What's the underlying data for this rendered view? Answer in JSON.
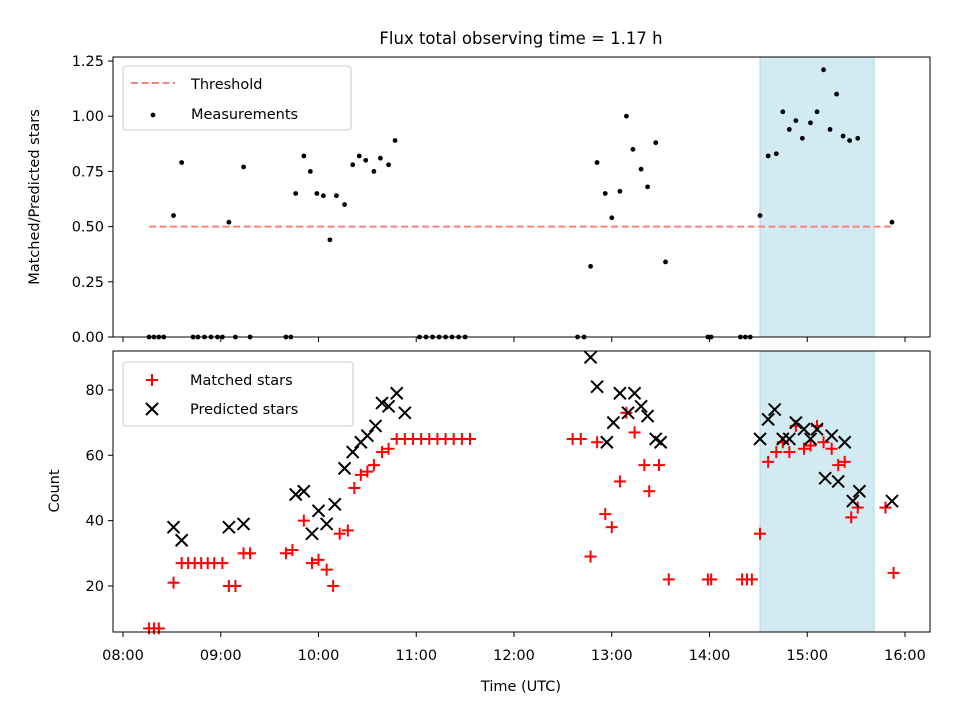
{
  "figure": {
    "title": "Flux total observing time = 1.17 h"
  },
  "chart_data": [
    {
      "type": "scatter",
      "ylabel": "Matched/Predicted stars",
      "xlabel": "",
      "xlim": [
        "08:00",
        "16:00"
      ],
      "ylim": [
        0,
        1.25
      ],
      "y_ticks": [
        0.0,
        0.25,
        0.5,
        0.75,
        1.0,
        1.25
      ],
      "y_tick_labels": [
        "0.00",
        "0.25",
        "0.50",
        "0.75",
        "1.00",
        "1.25"
      ],
      "legend": {
        "placement": "upper-left",
        "entries": [
          "Threshold",
          "Measurements"
        ]
      },
      "threshold": {
        "name": "Threshold",
        "y": 0.5,
        "x_range": [
          "08:16",
          "15:53"
        ],
        "color": "#ff7f7f"
      },
      "shaded_region": {
        "x_range": [
          "14:31",
          "15:41"
        ],
        "color": "#add8e6"
      },
      "series": [
        {
          "name": "Measurements",
          "marker": "dot",
          "color": "#000000",
          "points": [
            [
              "08:16",
              0
            ],
            [
              "08:19",
              0
            ],
            [
              "08:22",
              0
            ],
            [
              "08:25",
              0
            ],
            [
              "08:31",
              0.55
            ],
            [
              "08:36",
              0.79
            ],
            [
              "08:43",
              0
            ],
            [
              "08:46",
              0
            ],
            [
              "08:50",
              0
            ],
            [
              "08:54",
              0
            ],
            [
              "08:58",
              0
            ],
            [
              "09:01",
              0
            ],
            [
              "09:05",
              0.52
            ],
            [
              "09:09",
              0
            ],
            [
              "09:14",
              0.77
            ],
            [
              "09:18",
              0
            ],
            [
              "09:40",
              0
            ],
            [
              "09:43",
              0
            ],
            [
              "09:46",
              0.65
            ],
            [
              "09:51",
              0.82
            ],
            [
              "09:55",
              0.75
            ],
            [
              "09:59",
              0.65
            ],
            [
              "10:03",
              0.64
            ],
            [
              "10:07",
              0.44
            ],
            [
              "10:11",
              0.64
            ],
            [
              "10:16",
              0.6
            ],
            [
              "10:21",
              0.78
            ],
            [
              "10:25",
              0.82
            ],
            [
              "10:29",
              0.8
            ],
            [
              "10:34",
              0.75
            ],
            [
              "10:38",
              0.81
            ],
            [
              "10:43",
              0.78
            ],
            [
              "10:47",
              0.89
            ],
            [
              "11:02",
              0
            ],
            [
              "11:06",
              0
            ],
            [
              "11:10",
              0
            ],
            [
              "11:14",
              0
            ],
            [
              "11:18",
              0
            ],
            [
              "11:22",
              0
            ],
            [
              "11:26",
              0
            ],
            [
              "11:30",
              0
            ],
            [
              "12:39",
              0
            ],
            [
              "12:43",
              0
            ],
            [
              "12:47",
              0.32
            ],
            [
              "12:51",
              0.79
            ],
            [
              "12:56",
              0.65
            ],
            [
              "13:00",
              0.54
            ],
            [
              "13:05",
              0.66
            ],
            [
              "13:09",
              1.0
            ],
            [
              "13:13",
              0.85
            ],
            [
              "13:18",
              0.76
            ],
            [
              "13:22",
              0.68
            ],
            [
              "13:27",
              0.88
            ],
            [
              "13:33",
              0.34
            ],
            [
              "13:59",
              0
            ],
            [
              "14:01",
              0
            ],
            [
              "14:19",
              0
            ],
            [
              "14:22",
              0
            ],
            [
              "14:25",
              0
            ],
            [
              "14:31",
              0.55
            ],
            [
              "14:36",
              0.82
            ],
            [
              "14:41",
              0.83
            ],
            [
              "14:45",
              1.02
            ],
            [
              "14:49",
              0.94
            ],
            [
              "14:53",
              0.98
            ],
            [
              "14:57",
              0.9
            ],
            [
              "15:02",
              0.97
            ],
            [
              "15:06",
              1.02
            ],
            [
              "15:10",
              1.21
            ],
            [
              "15:14",
              0.94
            ],
            [
              "15:18",
              1.1
            ],
            [
              "15:22",
              0.91
            ],
            [
              "15:26",
              0.89
            ],
            [
              "15:31",
              0.9
            ],
            [
              "15:52",
              0.52
            ]
          ]
        }
      ]
    },
    {
      "type": "scatter",
      "ylabel": "Count",
      "xlabel": "Time (UTC)",
      "xlim": [
        "08:00",
        "16:00"
      ],
      "x_ticks": [
        "08:00",
        "09:00",
        "10:00",
        "11:00",
        "12:00",
        "13:00",
        "14:00",
        "15:00",
        "16:00"
      ],
      "ylim": [
        3,
        93
      ],
      "y_ticks": [
        20,
        40,
        60,
        80
      ],
      "legend": {
        "placement": "upper-left",
        "entries": [
          "Matched stars",
          "Predicted stars"
        ]
      },
      "shaded_region": {
        "x_range": [
          "14:31",
          "15:41"
        ],
        "color": "#add8e6"
      },
      "series": [
        {
          "name": "Matched stars",
          "marker": "plus",
          "color": "#ff0000",
          "points": [
            [
              "08:16",
              7
            ],
            [
              "08:19",
              7
            ],
            [
              "08:22",
              7
            ],
            [
              "08:31",
              21
            ],
            [
              "08:36",
              27
            ],
            [
              "08:40",
              27
            ],
            [
              "08:44",
              27
            ],
            [
              "08:48",
              27
            ],
            [
              "08:52",
              27
            ],
            [
              "08:56",
              27
            ],
            [
              "09:01",
              27
            ],
            [
              "09:05",
              20
            ],
            [
              "09:09",
              20
            ],
            [
              "09:14",
              30
            ],
            [
              "09:18",
              30
            ],
            [
              "09:40",
              30
            ],
            [
              "09:44",
              31
            ],
            [
              "09:51",
              40
            ],
            [
              "09:56",
              27
            ],
            [
              "10:00",
              28
            ],
            [
              "10:05",
              25
            ],
            [
              "10:09",
              20
            ],
            [
              "10:13",
              36
            ],
            [
              "10:18",
              37
            ],
            [
              "10:22",
              50
            ],
            [
              "10:26",
              54
            ],
            [
              "10:30",
              55
            ],
            [
              "10:34",
              57
            ],
            [
              "10:39",
              61
            ],
            [
              "10:43",
              62
            ],
            [
              "10:48",
              65
            ],
            [
              "10:53",
              65
            ],
            [
              "10:58",
              65
            ],
            [
              "11:03",
              65
            ],
            [
              "11:08",
              65
            ],
            [
              "11:13",
              65
            ],
            [
              "11:18",
              65
            ],
            [
              "11:23",
              65
            ],
            [
              "11:28",
              65
            ],
            [
              "11:33",
              65
            ],
            [
              "12:36",
              65
            ],
            [
              "12:41",
              65
            ],
            [
              "12:47",
              29
            ],
            [
              "12:51",
              64
            ],
            [
              "12:56",
              42
            ],
            [
              "13:00",
              38
            ],
            [
              "13:05",
              52
            ],
            [
              "13:09",
              73
            ],
            [
              "13:14",
              67
            ],
            [
              "13:20",
              57
            ],
            [
              "13:23",
              49
            ],
            [
              "13:29",
              57
            ],
            [
              "13:35",
              22
            ],
            [
              "13:59",
              22
            ],
            [
              "14:01",
              22
            ],
            [
              "14:20",
              22
            ],
            [
              "14:23",
              22
            ],
            [
              "14:26",
              22
            ],
            [
              "14:31",
              36
            ],
            [
              "14:36",
              58
            ],
            [
              "14:41",
              61
            ],
            [
              "14:45",
              64
            ],
            [
              "14:49",
              61
            ],
            [
              "14:53",
              69
            ],
            [
              "14:58",
              62
            ],
            [
              "15:02",
              63
            ],
            [
              "15:06",
              69
            ],
            [
              "15:10",
              64
            ],
            [
              "15:15",
              62
            ],
            [
              "15:19",
              57
            ],
            [
              "15:23",
              58
            ],
            [
              "15:27",
              41
            ],
            [
              "15:31",
              44
            ],
            [
              "15:48",
              44
            ],
            [
              "15:53",
              24
            ]
          ]
        },
        {
          "name": "Predicted stars",
          "marker": "x",
          "color": "#000000",
          "points": [
            [
              "08:31",
              38
            ],
            [
              "08:36",
              34
            ],
            [
              "09:05",
              38
            ],
            [
              "09:14",
              39
            ],
            [
              "09:46",
              48
            ],
            [
              "09:51",
              49
            ],
            [
              "09:56",
              36
            ],
            [
              "10:00",
              43
            ],
            [
              "10:05",
              39
            ],
            [
              "10:10",
              45
            ],
            [
              "10:16",
              56
            ],
            [
              "10:21",
              61
            ],
            [
              "10:26",
              64
            ],
            [
              "10:30",
              66
            ],
            [
              "10:35",
              69
            ],
            [
              "10:39",
              76
            ],
            [
              "10:43",
              75
            ],
            [
              "10:48",
              79
            ],
            [
              "10:53",
              73
            ],
            [
              "12:47",
              90
            ],
            [
              "12:51",
              81
            ],
            [
              "12:57",
              64
            ],
            [
              "13:01",
              70
            ],
            [
              "13:05",
              79
            ],
            [
              "13:10",
              73
            ],
            [
              "13:14",
              79
            ],
            [
              "13:18",
              75
            ],
            [
              "13:22",
              72
            ],
            [
              "13:27",
              65
            ],
            [
              "13:30",
              64
            ],
            [
              "14:31",
              65
            ],
            [
              "14:36",
              71
            ],
            [
              "14:40",
              74
            ],
            [
              "14:45",
              65
            ],
            [
              "14:49",
              65
            ],
            [
              "14:53",
              70
            ],
            [
              "14:58",
              68
            ],
            [
              "15:02",
              65
            ],
            [
              "15:06",
              68
            ],
            [
              "15:11",
              53
            ],
            [
              "15:15",
              66
            ],
            [
              "15:19",
              52
            ],
            [
              "15:23",
              64
            ],
            [
              "15:28",
              46
            ],
            [
              "15:32",
              49
            ],
            [
              "15:52",
              46
            ]
          ]
        }
      ]
    }
  ]
}
